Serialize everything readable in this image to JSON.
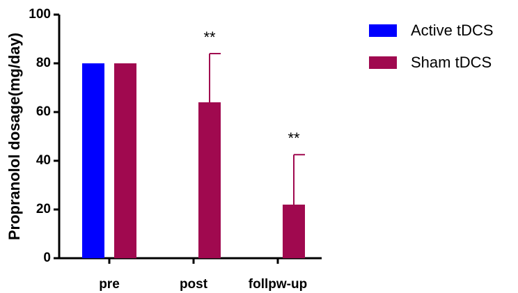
{
  "chart_data": {
    "type": "bar",
    "y_label": "Propranolol dosage(mg/day)",
    "categories": [
      "pre",
      "post",
      "follpw-up"
    ],
    "series": [
      {
        "name": "Active tDCS",
        "color": "#0000ff",
        "values": [
          80,
          0,
          0
        ]
      },
      {
        "name": "Sham tDCS",
        "color": "#a0094f",
        "values": [
          80,
          64,
          22
        ],
        "errors": [
          null,
          20,
          20.5
        ]
      }
    ],
    "annotations": [
      {
        "text": "**",
        "category": "post"
      },
      {
        "text": "**",
        "category": "follpw-up"
      }
    ],
    "ylim": [
      0,
      100
    ],
    "yticks": [
      0,
      20,
      40,
      60,
      80,
      100
    ],
    "legend": "right",
    "grid": false
  }
}
